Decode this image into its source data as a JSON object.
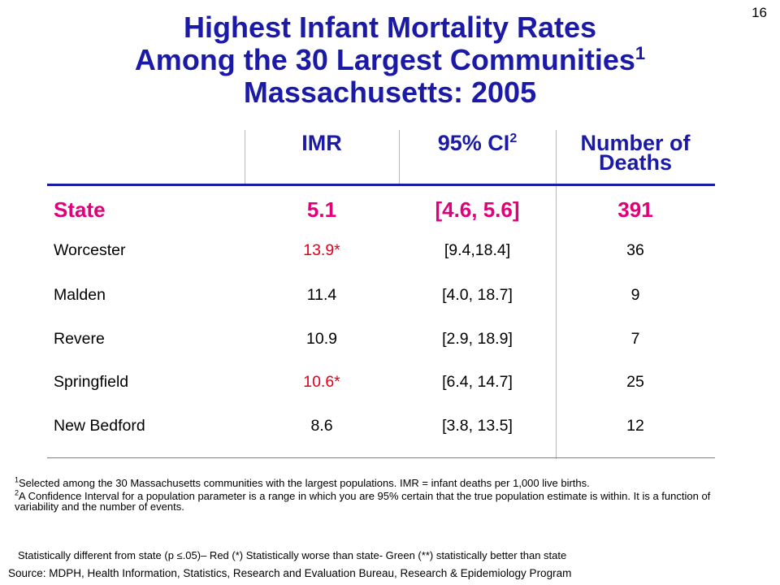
{
  "slide_number": "16",
  "title": {
    "line1": "Highest Infant Mortality Rates",
    "line2": "Among the 30 Largest Communities",
    "line2_sup": "1",
    "line3": "Massachusetts: 2005"
  },
  "chart_data": {
    "type": "table",
    "columns": [
      {
        "label": "IMR",
        "sup": ""
      },
      {
        "label": "95% CI",
        "sup": "2"
      },
      {
        "label": "Number of Deaths",
        "sup": ""
      }
    ],
    "rows": [
      {
        "name": "State",
        "imr": "5.1",
        "ci": "[4.6, 5.6]",
        "deaths": "391",
        "is_state": true,
        "imr_flag": false
      },
      {
        "name": "Worcester",
        "imr": "13.9*",
        "ci": "[9.4,18.4]",
        "deaths": "36",
        "is_state": false,
        "imr_flag": true
      },
      {
        "name": "Malden",
        "imr": "11.4",
        "ci": "[4.0, 18.7]",
        "deaths": "9",
        "is_state": false,
        "imr_flag": false
      },
      {
        "name": "Revere",
        "imr": "10.9",
        "ci": "[2.9, 18.9]",
        "deaths": "7",
        "is_state": false,
        "imr_flag": false
      },
      {
        "name": "Springfield",
        "imr": "10.6*",
        "ci": "[6.4, 14.7]",
        "deaths": "25",
        "is_state": false,
        "imr_flag": true
      },
      {
        "name": "New Bedford",
        "imr": "8.6",
        "ci": "[3.8, 13.5]",
        "deaths": "12",
        "is_state": false,
        "imr_flag": false
      }
    ]
  },
  "footnotes": {
    "fn1_sup": "1",
    "fn1": "Selected among the 30 Massachusetts communities with the largest populations. IMR = infant deaths per 1,000 live births.",
    "fn2_sup": "2",
    "fn2": "A Confidence Interval for a population parameter is a range in which you are 95% certain that the true population estimate is within. It is a function of variability and the number of events.",
    "stat_note": "Statistically different from state (p ≤.05)– Red (*) Statistically worse than state- Green (**) statistically better than state"
  },
  "source": "Source:  MDPH, Health Information, Statistics, Research and Evaluation Bureau, Research & Epidemiology Program",
  "colors": {
    "title": "#1a1aa6",
    "state_row": "#e0007a",
    "worse_than_state": "#e0001b",
    "rule": "#1a1aa6"
  }
}
